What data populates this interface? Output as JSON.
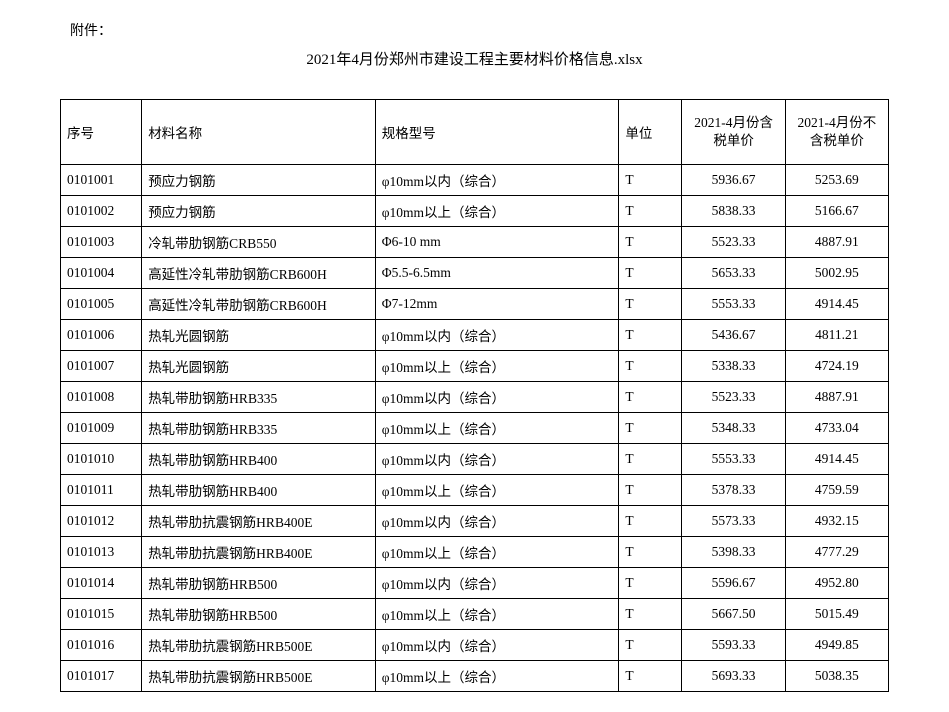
{
  "header": {
    "attachment_label": "附件：",
    "title": "2021年4月份郑州市建设工程主要材料价格信息.xlsx"
  },
  "table": {
    "columns": {
      "seq": "序号",
      "name": "材料名称",
      "spec": "规格型号",
      "unit": "单位",
      "price1": "2021-4月份含税单价",
      "price2": "2021-4月份不含税单价"
    },
    "rows": [
      {
        "seq": "0101001",
        "name": "预应力钢筋",
        "spec": "φ10mm以内（综合）",
        "unit": "T",
        "price1": "5936.67",
        "price2": "5253.69"
      },
      {
        "seq": "0101002",
        "name": "预应力钢筋",
        "spec": "φ10mm以上（综合）",
        "unit": "T",
        "price1": "5838.33",
        "price2": "5166.67"
      },
      {
        "seq": "0101003",
        "name": "冷轧带肋钢筋CRB550",
        "spec": "Φ6-10 mm",
        "unit": "T",
        "price1": "5523.33",
        "price2": "4887.91"
      },
      {
        "seq": "0101004",
        "name": "高延性冷轧带肋钢筋CRB600H",
        "spec": "Φ5.5-6.5mm",
        "unit": "T",
        "price1": "5653.33",
        "price2": "5002.95"
      },
      {
        "seq": "0101005",
        "name": "高延性冷轧带肋钢筋CRB600H",
        "spec": "Φ7-12mm",
        "unit": "T",
        "price1": "5553.33",
        "price2": "4914.45"
      },
      {
        "seq": "0101006",
        "name": "热轧光圆钢筋",
        "spec": "φ10mm以内（综合）",
        "unit": "T",
        "price1": "5436.67",
        "price2": "4811.21"
      },
      {
        "seq": "0101007",
        "name": "热轧光圆钢筋",
        "spec": "φ10mm以上（综合）",
        "unit": "T",
        "price1": "5338.33",
        "price2": "4724.19"
      },
      {
        "seq": "0101008",
        "name": "热轧带肋钢筋HRB335",
        "spec": "φ10mm以内（综合）",
        "unit": "T",
        "price1": "5523.33",
        "price2": "4887.91"
      },
      {
        "seq": "0101009",
        "name": "热轧带肋钢筋HRB335",
        "spec": "φ10mm以上（综合）",
        "unit": "T",
        "price1": "5348.33",
        "price2": "4733.04"
      },
      {
        "seq": "0101010",
        "name": "热轧带肋钢筋HRB400",
        "spec": "φ10mm以内（综合）",
        "unit": "T",
        "price1": "5553.33",
        "price2": "4914.45"
      },
      {
        "seq": "0101011",
        "name": "热轧带肋钢筋HRB400",
        "spec": "φ10mm以上（综合）",
        "unit": "T",
        "price1": "5378.33",
        "price2": "4759.59"
      },
      {
        "seq": "0101012",
        "name": "热轧带肋抗震钢筋HRB400E",
        "spec": "φ10mm以内（综合）",
        "unit": "T",
        "price1": "5573.33",
        "price2": "4932.15"
      },
      {
        "seq": "0101013",
        "name": "热轧带肋抗震钢筋HRB400E",
        "spec": "φ10mm以上（综合）",
        "unit": "T",
        "price1": "5398.33",
        "price2": "4777.29"
      },
      {
        "seq": "0101014",
        "name": "热轧带肋钢筋HRB500",
        "spec": "φ10mm以内（综合）",
        "unit": "T",
        "price1": "5596.67",
        "price2": "4952.80"
      },
      {
        "seq": "0101015",
        "name": "热轧带肋钢筋HRB500",
        "spec": "φ10mm以上（综合）",
        "unit": "T",
        "price1": "5667.50",
        "price2": "5015.49"
      },
      {
        "seq": "0101016",
        "name": "热轧带肋抗震钢筋HRB500E",
        "spec": "φ10mm以内（综合）",
        "unit": "T",
        "price1": "5593.33",
        "price2": "4949.85"
      },
      {
        "seq": "0101017",
        "name": "热轧带肋抗震钢筋HRB500E",
        "spec": "φ10mm以上（综合）",
        "unit": "T",
        "price1": "5693.33",
        "price2": "5038.35"
      }
    ]
  },
  "styling": {
    "background_color": "#ffffff",
    "border_color": "#000000",
    "text_color": "#000000",
    "font_family": "SimSun",
    "body_font_size": 14,
    "cell_font_size": 13.5,
    "header_row_height": 48,
    "data_row_height": 20,
    "column_widths": {
      "seq": 68,
      "name": 220,
      "spec": 230,
      "unit": 50,
      "price1": 90,
      "price2": 90
    }
  }
}
